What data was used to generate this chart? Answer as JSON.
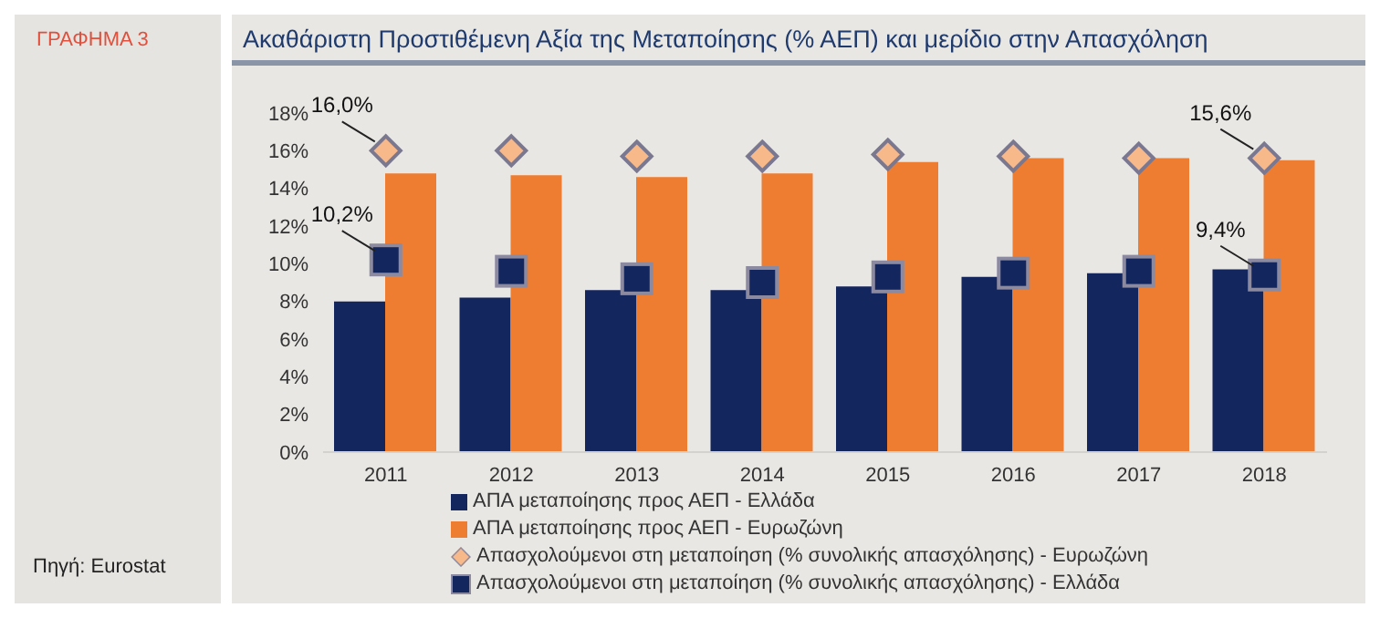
{
  "chart_data": {
    "type": "bar",
    "title": "Ακαθάριστη Προστιθέμενη Αξία της Μεταποίησης (% ΑΕΠ) και μερίδιο στην Απασχόληση",
    "annotations": [
      "ΓΡΑΦΗΜΑ 3",
      "Πηγή: Eurostat"
    ],
    "categories": [
      "2011",
      "2012",
      "2013",
      "2014",
      "2015",
      "2016",
      "2017",
      "2018"
    ],
    "series": [
      {
        "name": "ΑΠΑ μεταποίησης προς ΑΕΠ - Ελλάδα",
        "color": "#14265e",
        "values": [
          8.0,
          8.2,
          8.6,
          8.6,
          8.8,
          9.3,
          9.5,
          9.7
        ]
      },
      {
        "name": "ΑΠΑ μεταποίησης προς ΑΕΠ - Ευρωζώνη",
        "color": "#ee7d31",
        "values": [
          14.8,
          14.7,
          14.6,
          14.8,
          15.4,
          15.6,
          15.6,
          15.5
        ]
      },
      {
        "name": "Απασχολούμενοι στη μεταποίηση (% συνολικής απασχόλησης) - Ευρωζώνη",
        "type": "scatter",
        "marker": "diamond",
        "color": "#f7b98a",
        "values": [
          16.0,
          16.0,
          15.7,
          15.7,
          15.8,
          15.7,
          15.6,
          15.6
        ],
        "value_labels": [
          "16,0%",
          null,
          null,
          null,
          null,
          null,
          null,
          "15,6%"
        ]
      },
      {
        "name": "Απασχολούμενοι στη μεταποίηση (% συνολικής απασχόλησης) - Ελλάδα",
        "type": "scatter",
        "marker": "square",
        "color": "#14265e",
        "values": [
          10.2,
          9.6,
          9.2,
          9.0,
          9.3,
          9.5,
          9.6,
          9.4
        ],
        "value_labels": [
          "10,2%",
          null,
          null,
          null,
          null,
          null,
          null,
          "9,4%"
        ]
      }
    ],
    "ylim": [
      0,
      18
    ],
    "yticks": [
      {
        "value": 0,
        "label": "0%"
      },
      {
        "value": 2,
        "label": "2%"
      },
      {
        "value": 4,
        "label": "4%"
      },
      {
        "value": 6,
        "label": "6%"
      },
      {
        "value": 8,
        "label": "8%"
      },
      {
        "value": 10,
        "label": "10%"
      },
      {
        "value": 12,
        "label": "12%"
      },
      {
        "value": 14,
        "label": "14%"
      },
      {
        "value": 16,
        "label": "16%"
      },
      {
        "value": 18,
        "label": "18%"
      }
    ],
    "grid": false,
    "legend": "bottom"
  }
}
